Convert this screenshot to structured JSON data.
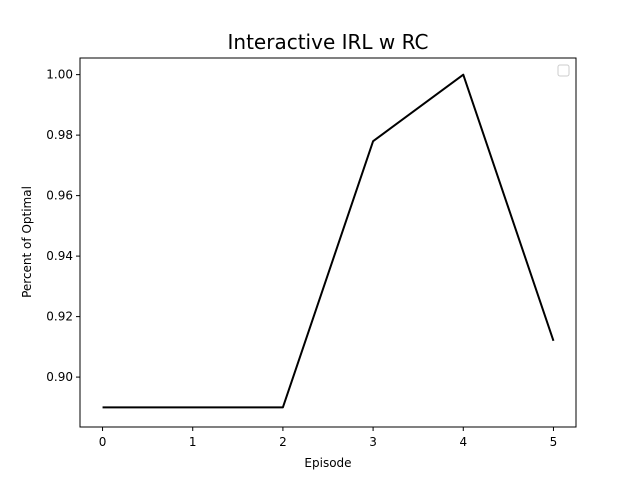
{
  "chart_data": {
    "type": "line",
    "title": "Interactive IRL w RC",
    "xlabel": "Episode",
    "ylabel": "Percent of Optimal",
    "x": [
      0,
      1,
      2,
      3,
      4,
      5
    ],
    "xlim": [
      -0.25,
      5.25
    ],
    "ylim": [
      0.8835,
      1.0055
    ],
    "x_ticks": [
      0,
      1,
      2,
      3,
      4,
      5
    ],
    "x_tick_labels": [
      "0",
      "1",
      "2",
      "3",
      "4",
      "5"
    ],
    "y_ticks": [
      0.9,
      0.92,
      0.94,
      0.96,
      0.98,
      1.0
    ],
    "y_tick_labels": [
      "0.90",
      "0.92",
      "0.94",
      "0.96",
      "0.98",
      "1.00"
    ],
    "series": [
      {
        "values": [
          0.89,
          0.89,
          0.89,
          0.978,
          1.0,
          0.912
        ],
        "color": "#000000"
      }
    ],
    "legend": {
      "placement": "top-right",
      "entries": []
    },
    "grid": false
  }
}
